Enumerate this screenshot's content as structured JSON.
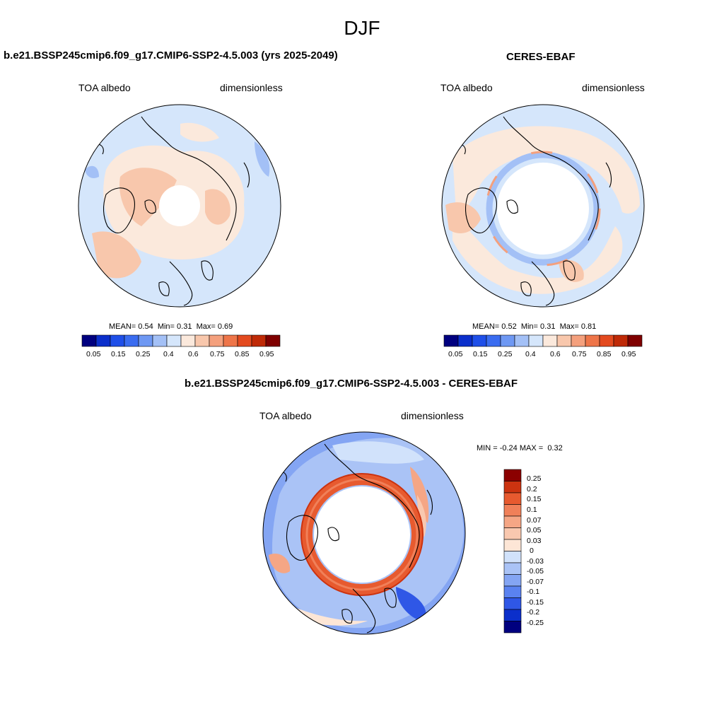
{
  "figure": {
    "season": "DJF"
  },
  "colors": {
    "seq": [
      "#00007f",
      "#0b2fcb",
      "#1f4fe8",
      "#3a6cf0",
      "#6e98f3",
      "#a3c0f6",
      "#d5e6fb",
      "#fbe9dc",
      "#f8c7ac",
      "#f4a07d",
      "#ee7549",
      "#e34a1f",
      "#bf2a07",
      "#7f0000"
    ],
    "div": [
      "#00007f",
      "#0b2fcb",
      "#2f57e6",
      "#5a82f0",
      "#84a5f3",
      "#aac3f6",
      "#d1e2fb",
      "#fde6d6",
      "#f9c8af",
      "#f5a685",
      "#f08059",
      "#e75a2f",
      "#cc3310",
      "#8b0000"
    ]
  },
  "chart_data": [
    {
      "type": "heatmap",
      "projection": "north-polar-stereographic",
      "title": "b.e21.BSSP245cmip6.f09_g17.CMIP6-SSP2-4.5.003 (yrs 2025-2049)",
      "left_label": "TOA albedo",
      "right_label": "dimensionless",
      "stats": {
        "mean_label": "MEAN=",
        "mean": "0.54",
        "min_label": "Min=",
        "min": "0.31",
        "max_label": "Max=",
        "max": "0.69"
      },
      "colorbar_labels": [
        "0.05",
        "0.15",
        "0.25",
        "0.4",
        "0.6",
        "0.75",
        "0.85",
        "0.95"
      ],
      "colorbar_levels": [
        0.05,
        0.1,
        0.15,
        0.2,
        0.25,
        0.3,
        0.4,
        0.5,
        0.6,
        0.7,
        0.75,
        0.8,
        0.85,
        0.9,
        0.95
      ]
    },
    {
      "type": "heatmap",
      "projection": "north-polar-stereographic",
      "title": "CERES-EBAF",
      "left_label": "TOA albedo",
      "right_label": "dimensionless",
      "stats": {
        "mean_label": "MEAN=",
        "mean": "0.52",
        "min_label": "Min=",
        "min": "0.31",
        "max_label": "Max=",
        "max": "0.81"
      },
      "colorbar_labels": [
        "0.05",
        "0.15",
        "0.25",
        "0.4",
        "0.6",
        "0.75",
        "0.85",
        "0.95"
      ],
      "colorbar_levels": [
        0.05,
        0.1,
        0.15,
        0.2,
        0.25,
        0.3,
        0.4,
        0.5,
        0.6,
        0.7,
        0.75,
        0.8,
        0.85,
        0.9,
        0.95
      ]
    },
    {
      "type": "heatmap",
      "projection": "north-polar-stereographic",
      "title": "b.e21.BSSP245cmip6.f09_g17.CMIP6-SSP2-4.5.003 - CERES-EBAF",
      "left_label": "TOA albedo",
      "right_label": "dimensionless",
      "stats": {
        "min_label": "MIN =",
        "min": "-0.24",
        "max_label": "MAX =",
        "max": "0.32"
      },
      "colorbar_labels": [
        "0.25",
        "0.2",
        "0.15",
        "0.1",
        "0.07",
        "0.05",
        "0.03",
        "0",
        "-0.03",
        "-0.05",
        "-0.07",
        "-0.1",
        "-0.15",
        "-0.2",
        "-0.25"
      ]
    }
  ]
}
